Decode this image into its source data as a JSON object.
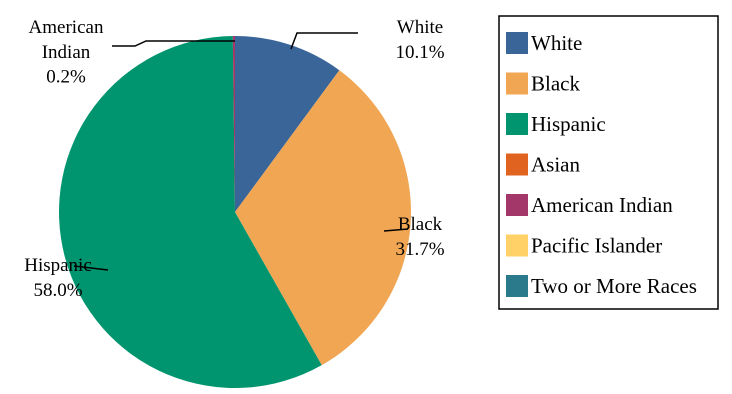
{
  "chart_data": {
    "type": "pie",
    "categories": [
      "White",
      "Black",
      "Hispanic",
      "Asian",
      "American Indian",
      "Pacific Islander",
      "Two or More Races"
    ],
    "values": [
      10.1,
      31.7,
      58.0,
      0.0,
      0.2,
      0.0,
      0.0
    ],
    "value_labels": [
      "10.1%",
      "31.7%",
      "58.0%",
      "",
      "0.2%",
      "",
      ""
    ],
    "label_lines": [
      [
        "White"
      ],
      [
        "Black"
      ],
      [
        "Hispanic"
      ],
      [],
      [
        "American",
        "Indian"
      ],
      [],
      []
    ],
    "colors": [
      "#3A6599",
      "#F0A653",
      "#00956E",
      "#E0631F",
      "#A33769",
      "#FFD166",
      "#2A7A8C"
    ],
    "legend_position": "right",
    "title": ""
  }
}
